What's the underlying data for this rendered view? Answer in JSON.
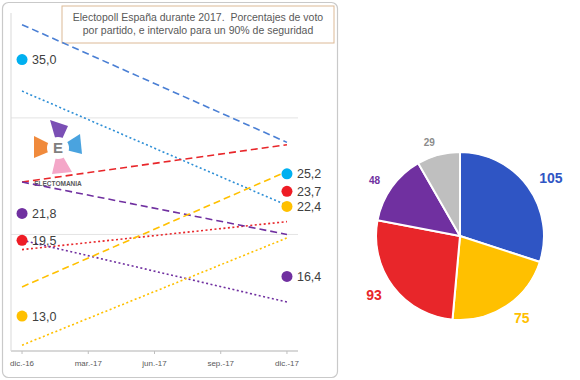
{
  "chart_data": [
    {
      "type": "line",
      "title": "Electopoll España durante 2017.  Porcentajes de voto por partido, e intervalo para un 90% de seguridad",
      "annotations": [
        "E",
        "ELECTOMANIA"
      ],
      "xlim": [
        -0.5,
        12.5
      ],
      "xticks": [
        {
          "value": 0,
          "label": "dic.-16"
        },
        {
          "value": 3,
          "label": "mar.-17"
        },
        {
          "value": 6,
          "label": "jun.-17"
        },
        {
          "value": 9,
          "label": "sep.-17"
        },
        {
          "value": 12,
          "label": "dic.-17"
        }
      ],
      "ylim": [
        10,
        39
      ],
      "yticks": [
        10,
        20,
        30
      ],
      "grid": true,
      "tick_labels": "x",
      "series": [
        {
          "color": "#4a7fd4",
          "type": "line",
          "line_style": "dashed",
          "x": [
            0,
            12
          ],
          "values": [
            38.0,
            27.9
          ]
        },
        {
          "color": "#2e8fd6",
          "type": "line",
          "line_style": "dotted",
          "x": [
            0,
            12
          ],
          "values": [
            32.3,
            22.5
          ]
        },
        {
          "color": "#e8262a",
          "type": "line",
          "line_style": "dashed",
          "x": [
            0,
            12
          ],
          "values": [
            24.5,
            27.7
          ]
        },
        {
          "color": "#e8262a",
          "type": "line",
          "line_style": "dotted",
          "x": [
            0,
            12
          ],
          "values": [
            18.7,
            21.1
          ]
        },
        {
          "color": "#7030a0",
          "type": "line",
          "line_style": "dashed",
          "x": [
            0,
            12
          ],
          "values": [
            24.5,
            20.0
          ]
        },
        {
          "color": "#7030a0",
          "type": "line",
          "line_style": "dotted",
          "x": [
            0,
            12
          ],
          "values": [
            19.5,
            14.2
          ]
        },
        {
          "color": "#ffc000",
          "type": "line",
          "line_style": "dashed",
          "x": [
            0,
            12
          ],
          "values": [
            15.5,
            25.4
          ]
        },
        {
          "color": "#ffc000",
          "type": "line",
          "line_style": "dotted",
          "x": [
            0,
            12
          ],
          "values": [
            10.5,
            19.7
          ]
        },
        {
          "color": "#00b0f0",
          "type": "scatter",
          "marker": "circle",
          "data_labels": true,
          "x": [
            0,
            12
          ],
          "values": [
            35.0,
            25.2
          ],
          "value_labels": [
            "35,0",
            "25,2"
          ]
        },
        {
          "color": "#ee1c25",
          "type": "scatter",
          "marker": "circle",
          "data_labels": true,
          "x": [
            0,
            12
          ],
          "values": [
            19.5,
            23.7
          ],
          "value_labels": [
            "19,5",
            "23,7"
          ]
        },
        {
          "color": "#7030a0",
          "type": "scatter",
          "marker": "circle",
          "data_labels": true,
          "x": [
            0,
            12
          ],
          "values": [
            21.8,
            16.4
          ],
          "value_labels": [
            "21,8",
            "16,4"
          ]
        },
        {
          "color": "#ffc000",
          "type": "scatter",
          "marker": "circle",
          "data_labels": true,
          "x": [
            0,
            12
          ],
          "values": [
            13.0,
            22.4
          ],
          "value_labels": [
            "13,0",
            "22,4"
          ]
        }
      ]
    },
    {
      "type": "pie",
      "values": [
        105,
        75,
        93,
        48,
        29
      ],
      "colors": [
        "#2f55c4",
        "#ffc000",
        "#e8262a",
        "#7030a0",
        "#bfbfbf"
      ],
      "data_labels": true
    }
  ]
}
